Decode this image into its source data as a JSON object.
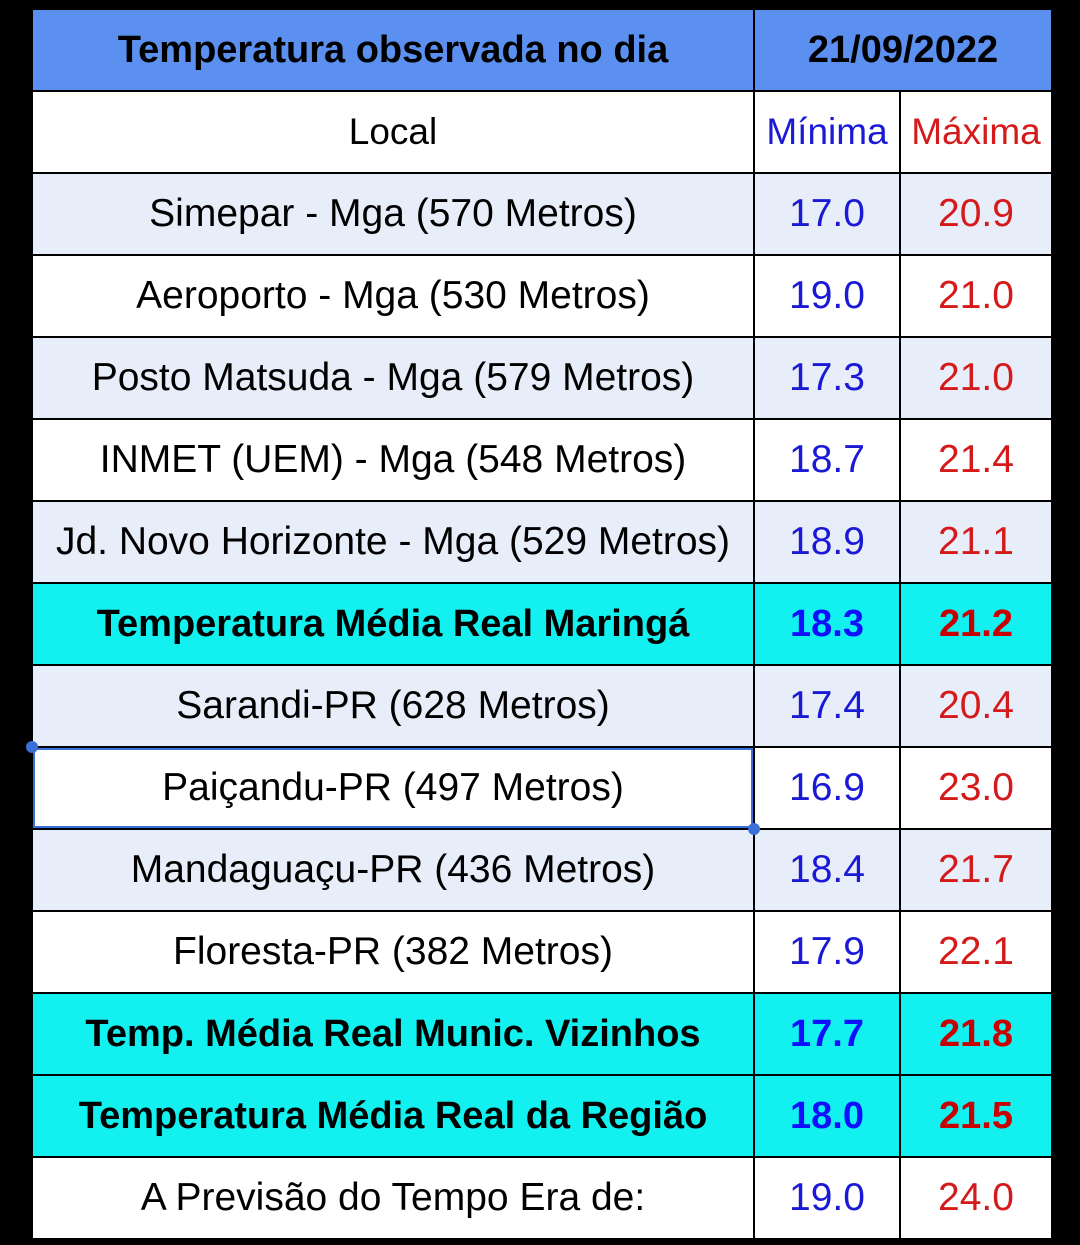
{
  "header": {
    "title": "Temperatura observada no dia",
    "date": "21/09/2022"
  },
  "columns": {
    "local": "Local",
    "min": "Mínima",
    "max": "Máxima"
  },
  "rows": [
    {
      "local": "Simepar - Mga  (570 Metros)",
      "min": "17.0",
      "max": "20.9",
      "type": "shade"
    },
    {
      "local": "Aeroporto - Mga (530 Metros)",
      "min": "19.0",
      "max": "21.0",
      "type": "white"
    },
    {
      "local": "Posto Matsuda - Mga (579 Metros)",
      "min": "17.3",
      "max": "21.0",
      "type": "shade"
    },
    {
      "local": "INMET (UEM) - Mga  (548 Metros)",
      "min": "18.7",
      "max": "21.4",
      "type": "white"
    },
    {
      "local": "Jd. Novo Horizonte - Mga (529 Metros)",
      "min": "18.9",
      "max": "21.1",
      "type": "shade"
    },
    {
      "local": "Temperatura Média Real Maringá",
      "min": "18.3",
      "max": "21.2",
      "type": "avg"
    },
    {
      "local": "Sarandi-PR  (628 Metros)",
      "min": "17.4",
      "max": "20.4",
      "type": "shade"
    },
    {
      "local": "Paiçandu-PR (497 Metros)",
      "min": "16.9",
      "max": "23.0",
      "type": "white",
      "selected": true
    },
    {
      "local": "Mandaguaçu-PR (436 Metros)",
      "min": "18.4",
      "max": "21.7",
      "type": "shade"
    },
    {
      "local": "Floresta-PR (382 Metros)",
      "min": "17.9",
      "max": "22.1",
      "type": "white"
    },
    {
      "local": "Temp. Média Real Munic. Vizinhos",
      "min": "17.7",
      "max": "21.8",
      "type": "avg"
    },
    {
      "local": "Temperatura Média Real da Região",
      "min": "18.0",
      "max": "21.5",
      "type": "avg"
    },
    {
      "local": "A Previsão do Tempo Era de:",
      "min": "19.0",
      "max": "24.0",
      "type": "white"
    }
  ],
  "colors": {
    "header_bg": "#5b8ff0",
    "shade_bg": "#e8eef9",
    "avg_bg": "#13f0f0",
    "min_text": "#1a1ad6",
    "max_text": "#d41a1a",
    "selection": "#3a6fd8"
  }
}
